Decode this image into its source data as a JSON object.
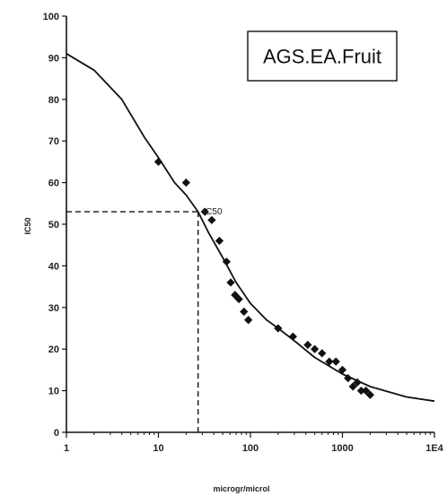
{
  "chart_data": {
    "type": "scatter",
    "title": "AGS.EA.Fruit",
    "xlabel": "microgr/microl",
    "ylabel": "IC50",
    "x_scale": "log",
    "xlim": [
      1,
      10000
    ],
    "ylim": [
      0,
      100
    ],
    "x_ticks": [
      1,
      10,
      100,
      1000,
      10000
    ],
    "x_tick_labels": [
      "1",
      "10",
      "100",
      "1000",
      "1E4"
    ],
    "y_ticks": [
      0,
      10,
      20,
      30,
      40,
      50,
      60,
      70,
      80,
      90,
      100
    ],
    "y_tick_labels": [
      "0",
      "10",
      "20",
      "30",
      "40",
      "50",
      "60",
      "70",
      "80",
      "90",
      "100"
    ],
    "grid": false,
    "legend": "top-right",
    "series": [
      {
        "type": "scatter",
        "marker": "diamond",
        "color": "#111111",
        "points": [
          {
            "x": 10,
            "y": 65
          },
          {
            "x": 20,
            "y": 60
          },
          {
            "x": 32,
            "y": 53
          },
          {
            "x": 38,
            "y": 51
          },
          {
            "x": 46,
            "y": 46
          },
          {
            "x": 55,
            "y": 41
          },
          {
            "x": 61,
            "y": 36
          },
          {
            "x": 68,
            "y": 33
          },
          {
            "x": 75,
            "y": 32
          },
          {
            "x": 85,
            "y": 29
          },
          {
            "x": 95,
            "y": 27
          },
          {
            "x": 200,
            "y": 25
          },
          {
            "x": 290,
            "y": 23
          },
          {
            "x": 420,
            "y": 21
          },
          {
            "x": 500,
            "y": 20
          },
          {
            "x": 600,
            "y": 19
          },
          {
            "x": 720,
            "y": 17
          },
          {
            "x": 850,
            "y": 17
          },
          {
            "x": 1000,
            "y": 15
          },
          {
            "x": 1150,
            "y": 13
          },
          {
            "x": 1300,
            "y": 11
          },
          {
            "x": 1450,
            "y": 12
          },
          {
            "x": 1600,
            "y": 10
          },
          {
            "x": 1800,
            "y": 10
          },
          {
            "x": 2000,
            "y": 9
          }
        ]
      },
      {
        "type": "line",
        "color": "#111111",
        "points": [
          {
            "x": 1,
            "y": 91
          },
          {
            "x": 2,
            "y": 87
          },
          {
            "x": 4,
            "y": 80
          },
          {
            "x": 7,
            "y": 71
          },
          {
            "x": 10,
            "y": 66
          },
          {
            "x": 15,
            "y": 60
          },
          {
            "x": 20,
            "y": 57
          },
          {
            "x": 27,
            "y": 53
          },
          {
            "x": 35,
            "y": 48
          },
          {
            "x": 50,
            "y": 42
          },
          {
            "x": 70,
            "y": 36
          },
          {
            "x": 100,
            "y": 31
          },
          {
            "x": 150,
            "y": 27
          },
          {
            "x": 200,
            "y": 25
          },
          {
            "x": 300,
            "y": 22
          },
          {
            "x": 500,
            "y": 18
          },
          {
            "x": 1000,
            "y": 14
          },
          {
            "x": 2000,
            "y": 11
          },
          {
            "x": 5000,
            "y": 8.5
          },
          {
            "x": 10000,
            "y": 7.5
          }
        ]
      }
    ],
    "reference_point": {
      "x": 27,
      "y": 53
    },
    "annotation": {
      "text": "IC50",
      "x": 30,
      "y": 53
    }
  }
}
